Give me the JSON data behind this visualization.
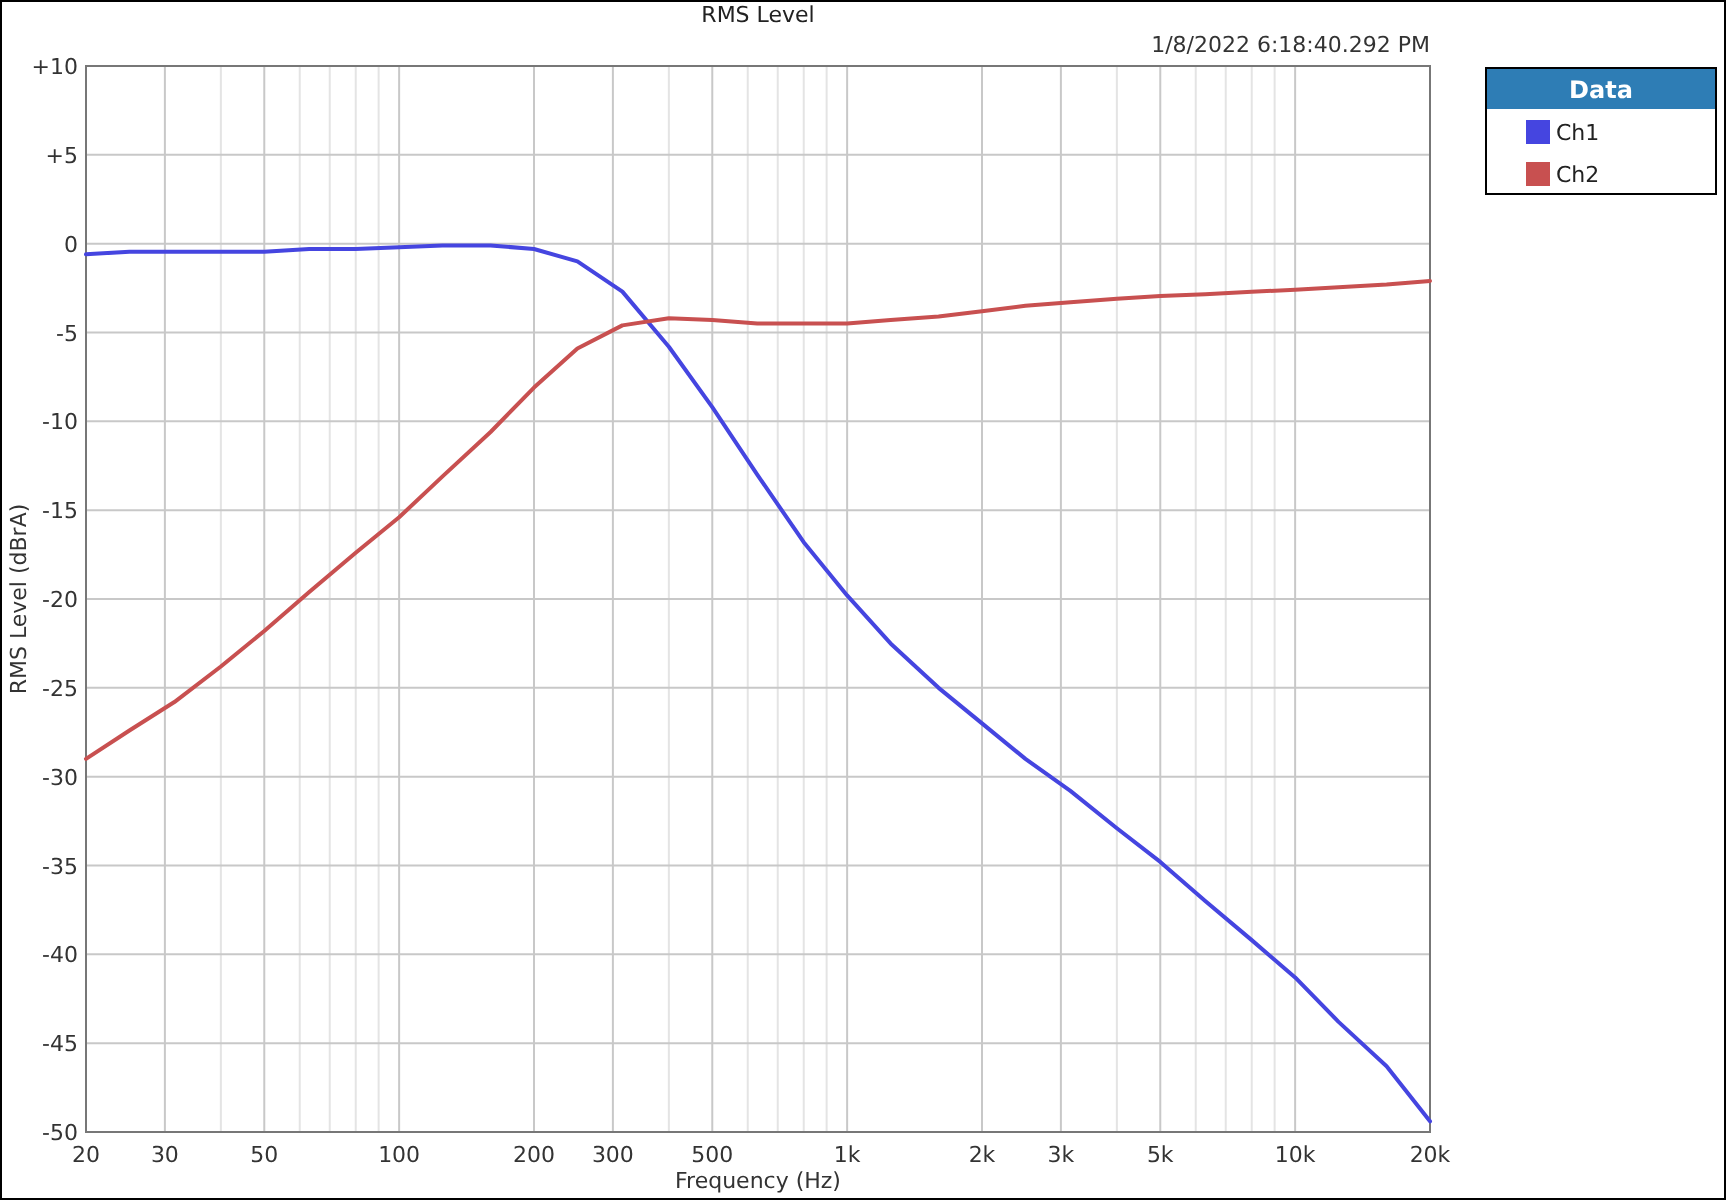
{
  "chart_data": {
    "type": "line",
    "title": "RMS Level",
    "xlabel": "Frequency (Hz)",
    "ylabel": "RMS Level (dBrA)",
    "legend_title": "Data",
    "annotations": [
      "1/8/2022 6:18:40.292 PM"
    ],
    "x": [
      20,
      25,
      31.5,
      40,
      50,
      63,
      80,
      100,
      125,
      160,
      200,
      250,
      315,
      400,
      500,
      630,
      800,
      1000,
      1250,
      1600,
      2000,
      2500,
      3150,
      4000,
      5000,
      6300,
      8000,
      10000,
      12500,
      16000,
      20000
    ],
    "series": [
      {
        "name": "Ch1",
        "color": "#4545e0",
        "values": [
          -0.6,
          -0.45,
          -0.45,
          -0.45,
          -0.45,
          -0.3,
          -0.3,
          -0.2,
          -0.1,
          -0.1,
          -0.3,
          -1.0,
          -2.7,
          -5.8,
          -9.2,
          -13,
          -16.8,
          -19.8,
          -22.5,
          -25,
          -27,
          -29,
          -30.8,
          -32.9,
          -34.8,
          -37,
          -39.2,
          -41.3,
          -43.8,
          -46.3,
          -49.4
        ]
      },
      {
        "name": "Ch2",
        "color": "#c85050",
        "values": [
          -29,
          -27.4,
          -25.8,
          -23.8,
          -21.8,
          -19.6,
          -17.4,
          -15.4,
          -13.1,
          -10.6,
          -8.1,
          -5.9,
          -4.6,
          -4.2,
          -4.3,
          -4.5,
          -4.5,
          -4.5,
          -4.3,
          -4.1,
          -3.8,
          -3.5,
          -3.3,
          -3.1,
          -2.95,
          -2.85,
          -2.7,
          -2.6,
          -2.45,
          -2.3,
          -2.1
        ]
      }
    ],
    "log": "x",
    "xlim": [
      20,
      20000
    ],
    "xticks": [
      20,
      30,
      {
        "value": 40,
        "label": null
      },
      50,
      {
        "value": 60,
        "label": null
      },
      {
        "value": 70,
        "label": null
      },
      {
        "value": 80,
        "label": null
      },
      {
        "value": 90,
        "label": null
      },
      100,
      200,
      300,
      {
        "value": 400,
        "label": null
      },
      500,
      {
        "value": 600,
        "label": null
      },
      {
        "value": 700,
        "label": null
      },
      {
        "value": 800,
        "label": null
      },
      {
        "value": 900,
        "label": null
      },
      {
        "value": 1000,
        "label": "1k"
      },
      {
        "value": 2000,
        "label": "2k"
      },
      {
        "value": 3000,
        "label": "3k"
      },
      {
        "value": 4000,
        "label": null
      },
      {
        "value": 5000,
        "label": "5k"
      },
      {
        "value": 6000,
        "label": null
      },
      {
        "value": 7000,
        "label": null
      },
      {
        "value": 8000,
        "label": null
      },
      {
        "value": 9000,
        "label": null
      },
      {
        "value": 10000,
        "label": "10k"
      },
      {
        "value": 20000,
        "label": "20k"
      }
    ],
    "ylim": [
      -50,
      10
    ],
    "yticks": [
      {
        "value": 10,
        "label": "+10"
      },
      {
        "value": 5,
        "label": "+5"
      },
      0,
      -5,
      -10,
      -15,
      -20,
      -25,
      -30,
      -35,
      -40,
      -45,
      -50
    ],
    "grid": true,
    "legend": "top right",
    "marker": "none",
    "line_style": "solid"
  }
}
